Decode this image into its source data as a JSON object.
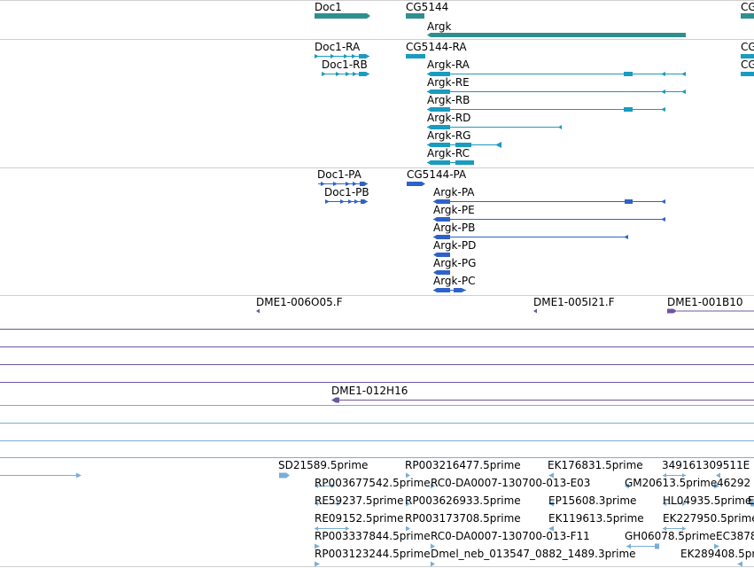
{
  "genes": [
    {
      "label": "Doc1"
    },
    {
      "label": "CG5144"
    },
    {
      "label": "Argk"
    },
    {
      "label": "CG"
    }
  ],
  "transcripts": [
    {
      "label": "Doc1-RA"
    },
    {
      "label": "Doc1-RB"
    },
    {
      "label": "CG5144-RA"
    },
    {
      "label": "Argk-RA"
    },
    {
      "label": "Argk-RE"
    },
    {
      "label": "Argk-RB"
    },
    {
      "label": "Argk-RD"
    },
    {
      "label": "Argk-RG"
    },
    {
      "label": "Argk-RC"
    },
    {
      "label": "CG"
    },
    {
      "label": "CG"
    }
  ],
  "proteins": [
    {
      "label": "Doc1-PA"
    },
    {
      "label": "Doc1-PB"
    },
    {
      "label": "CG5144-PA"
    },
    {
      "label": "Argk-PA"
    },
    {
      "label": "Argk-PE"
    },
    {
      "label": "Argk-PB"
    },
    {
      "label": "Argk-PD"
    },
    {
      "label": "Argk-PG"
    },
    {
      "label": "Argk-PC"
    }
  ],
  "clones": [
    {
      "label": "DME1-006O05.F"
    },
    {
      "label": "DME1-005I21.F"
    },
    {
      "label": "DME1-001B10"
    },
    {
      "label": "DME1-012H16"
    }
  ],
  "ests": [
    {
      "label": "SD21589.5prime"
    },
    {
      "label": "RP003216477.5prime"
    },
    {
      "label": "EK176831.5prime"
    },
    {
      "label": "349161309511E"
    },
    {
      "label": "RP003677542.5prime"
    },
    {
      "label": "RC0-DA0007-130700-013-E03"
    },
    {
      "label": "GM20613.5prime"
    },
    {
      "label": "46292"
    },
    {
      "label": "RE59237.5prime"
    },
    {
      "label": "RP003626933.5prime"
    },
    {
      "label": "EP15608.3prime"
    },
    {
      "label": "HL04935.5prime"
    },
    {
      "label": "E"
    },
    {
      "label": "RE09152.5prime"
    },
    {
      "label": "RP003173708.5prime"
    },
    {
      "label": "EK119613.5prime"
    },
    {
      "label": "EK227950.5prime"
    },
    {
      "label": "RP003337844.5prime"
    },
    {
      "label": "RC0-DA0007-130700-013-F11"
    },
    {
      "label": "GH06078.5prime"
    },
    {
      "label": "EC3878"
    },
    {
      "label": "RP003123244.5prime"
    },
    {
      "label": "Dmel_neb_013547_0882_1489.3prime"
    },
    {
      "label": "EK289408.5prime"
    }
  ],
  "colors": {
    "gene": "#2f8f8f",
    "transcript": "#1a9bc0",
    "protein": "#2f62c8",
    "clone": "#6f559f",
    "est": "#7aaed8",
    "separator": "#cfcfcf"
  }
}
